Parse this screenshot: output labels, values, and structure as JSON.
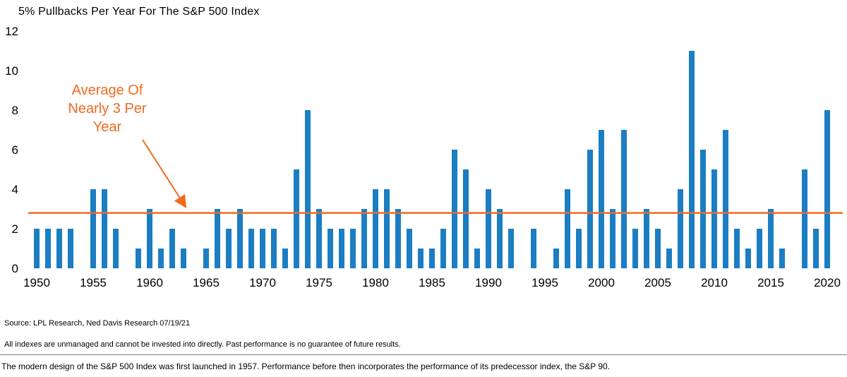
{
  "title": "5% Pullbacks Per Year For The S&P 500 Index",
  "footer": {
    "source": "Source: LPL Research, Ned Davis Research 07/19/21",
    "disclaimer": "All indexes are unmanaged and cannot be invested into directly. Past performance is no guarantee of future results.",
    "footnote": "The modern design of the S&P 500 Index was first launched in 1957. Performance before then incorporates the performance of its predecessor index, the S&P 90."
  },
  "chart_data": {
    "type": "bar",
    "title": "5% Pullbacks Per Year For The S&P 500 Index",
    "x": [
      1950,
      1951,
      1952,
      1953,
      1954,
      1955,
      1956,
      1957,
      1958,
      1959,
      1960,
      1961,
      1962,
      1963,
      1964,
      1965,
      1966,
      1967,
      1968,
      1969,
      1970,
      1971,
      1972,
      1973,
      1974,
      1975,
      1976,
      1977,
      1978,
      1979,
      1980,
      1981,
      1982,
      1983,
      1984,
      1985,
      1986,
      1987,
      1988,
      1989,
      1990,
      1991,
      1992,
      1993,
      1994,
      1995,
      1996,
      1997,
      1998,
      1999,
      2000,
      2001,
      2002,
      2003,
      2004,
      2005,
      2006,
      2007,
      2008,
      2009,
      2010,
      2011,
      2012,
      2013,
      2014,
      2015,
      2016,
      2017,
      2018,
      2019,
      2020
    ],
    "values": [
      2,
      2,
      2,
      2,
      0,
      4,
      4,
      2,
      0,
      1,
      3,
      1,
      2,
      1,
      0,
      1,
      3,
      2,
      3,
      2,
      2,
      2,
      1,
      5,
      8,
      3,
      2,
      2,
      2,
      3,
      4,
      4,
      3,
      2,
      1,
      1,
      2,
      6,
      5,
      1,
      4,
      3,
      2,
      0,
      2,
      0,
      1,
      4,
      2,
      6,
      7,
      3,
      7,
      2,
      3,
      2,
      1,
      4,
      11,
      6,
      5,
      7,
      2,
      1,
      2,
      3,
      1,
      0,
      5,
      2,
      8
    ],
    "xlabel": "",
    "ylabel": "",
    "ylim": [
      0,
      12
    ],
    "yticks": [
      0,
      2,
      4,
      6,
      8,
      10,
      12
    ],
    "xticks": [
      1950,
      1955,
      1960,
      1965,
      1970,
      1975,
      1980,
      1985,
      1990,
      1995,
      2000,
      2005,
      2010,
      2015,
      2020
    ],
    "grid": false,
    "legend": false,
    "bar_color": "#1b7ec2",
    "average_line": {
      "value": 2.8,
      "color": "#f16a22",
      "label_lines": [
        "Average Of",
        "Nearly 3 Per",
        "Year"
      ]
    }
  }
}
